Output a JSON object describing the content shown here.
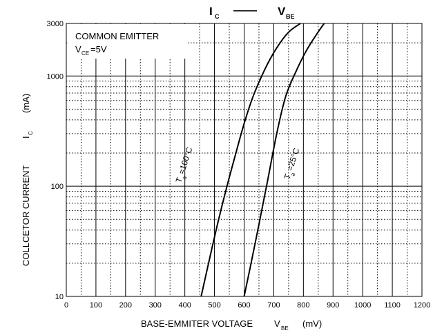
{
  "chart_data": {
    "type": "line",
    "title": "I_C — V_BE",
    "title_parts": {
      "y_symbol": "I",
      "y_sub": "C",
      "dash": "——",
      "x_symbol": "V",
      "x_sub": "BE"
    },
    "annotation": {
      "line1": "COMMON EMITTER",
      "line2_main": "V",
      "line2_sub": "CE",
      "line2_tail": "=5V"
    },
    "xlabel": {
      "main": "BASE-EMMITER VOLTAGE",
      "symbol": "V",
      "sub": "BE",
      "unit": "(mV)"
    },
    "ylabel": {
      "main": "COLLCETOR CURRENT",
      "symbol": "I",
      "sub": "C",
      "unit": "(mA)"
    },
    "xlim": [
      0,
      1200
    ],
    "ylim": [
      10,
      3000
    ],
    "yscale": "log",
    "grid": true,
    "x_ticks": [
      0,
      100,
      200,
      300,
      400,
      500,
      600,
      700,
      800,
      900,
      1000,
      1100,
      1200
    ],
    "y_ticks": [
      10,
      100,
      1000,
      3000
    ],
    "series": [
      {
        "name": "T_a=100°C",
        "label": {
          "main": "T",
          "sub": "a",
          "tail": "=100°C"
        },
        "x": [
          455,
          480,
          510,
          540,
          570,
          600,
          630,
          670,
          710,
          750,
          790
        ],
        "y": [
          10,
          20,
          45,
          95,
          190,
          370,
          650,
          1150,
          1800,
          2500,
          3000
        ]
      },
      {
        "name": "T_a=25°C",
        "label": {
          "main": "T",
          "sub": "a",
          "tail": "=25°C"
        },
        "x": [
          600,
          620,
          650,
          680,
          710,
          740,
          775,
          810,
          845,
          870
        ],
        "y": [
          10,
          18,
          45,
          115,
          300,
          650,
          1100,
          1700,
          2400,
          3000
        ]
      }
    ]
  }
}
